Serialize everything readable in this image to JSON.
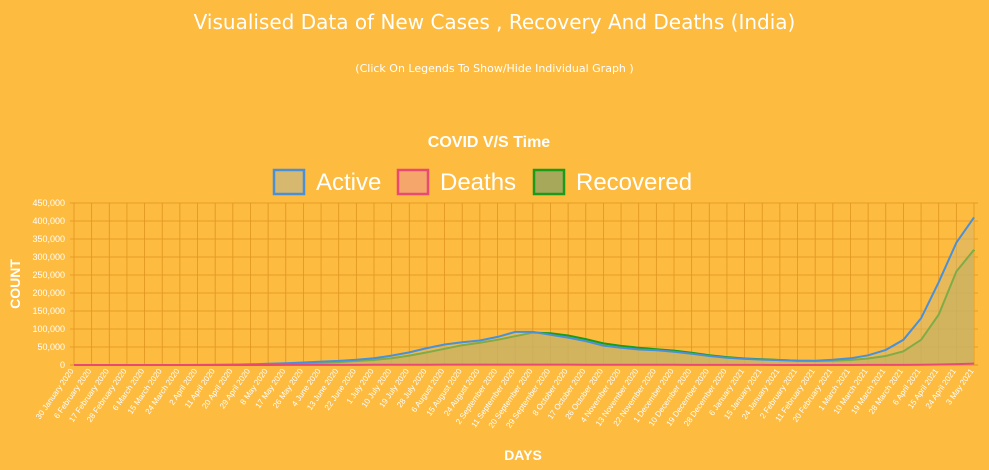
{
  "header": {
    "title": "Visualised Data of New Cases , Recovery And Deaths (India)",
    "subtitle": "(Click On Legends To Show/Hide Individual Graph )"
  },
  "chart_data": {
    "type": "area",
    "title": "COVID V/S Time",
    "xlabel": "DAYS",
    "ylabel": "COUNT",
    "ylim": [
      0,
      450000
    ],
    "y_ticks": [
      "0",
      "50,000",
      "100,000",
      "150,000",
      "200,000",
      "250,000",
      "300,000",
      "350,000",
      "400,000",
      "450,000"
    ],
    "grid": true,
    "legend_position": "top",
    "x_ticks": [
      "30 January 2020",
      "6 February 2020",
      "17 February 2020",
      "28 February 2020",
      "6 March 2020",
      "15 March 2020",
      "24 March 2020",
      "2 April 2020",
      "11 April 2020",
      "20 April 2020",
      "29 April 2020",
      "8 May 2020",
      "17 May 2020",
      "26 May 2020",
      "4 June 2020",
      "13 June 2020",
      "22 June 2020",
      "1 July 2020",
      "10 July 2020",
      "19 July 2020",
      "28 July 2020",
      "6 August 2020",
      "15 August 2020",
      "24 August 2020",
      "2 September 2020",
      "11 September 2020",
      "20 September 2020",
      "29 September 2020",
      "8 October 2020",
      "17 October 2020",
      "26 October 2020",
      "4 November 2020",
      "13 November 2020",
      "22 November 2020",
      "1 December 2020",
      "10 December 2020",
      "19 December 2020",
      "28 December 2020",
      "6 January 2021",
      "15 January 2021",
      "24 January 2021",
      "2 February 2021",
      "11 February 2021",
      "20 February 2021",
      "1 March 2021",
      "10 March 2021",
      "19 March 2021",
      "28 March 2021",
      "6 April 2021",
      "15 April 2021",
      "24 April 2021",
      "3 May 2021"
    ],
    "series": [
      {
        "name": "Active",
        "color": "#4a90d9",
        "fill": "#d6b86e",
        "values": [
          0,
          0,
          0,
          0,
          0,
          0,
          0,
          300,
          900,
          1200,
          1900,
          3300,
          5000,
          7000,
          9500,
          11500,
          14500,
          18500,
          26000,
          35000,
          47000,
          57000,
          63000,
          68000,
          78000,
          92000,
          92000,
          84000,
          76000,
          66000,
          54000,
          48000,
          43000,
          41000,
          37000,
          31000,
          25000,
          20000,
          17000,
          15000,
          13500,
          12000,
          12000,
          14500,
          18500,
          27000,
          42000,
          70000,
          130000,
          230000,
          340000,
          410000
        ]
      },
      {
        "name": "Deaths",
        "color": "#e94a73",
        "fill": "#f5a66a",
        "values": [
          0,
          0,
          0,
          0,
          0,
          0,
          0,
          10,
          40,
          50,
          70,
          120,
          150,
          200,
          300,
          350,
          400,
          550,
          600,
          700,
          900,
          1000,
          1000,
          1000,
          1100,
          1200,
          1200,
          1100,
          1000,
          800,
          600,
          500,
          500,
          500,
          450,
          400,
          300,
          250,
          200,
          150,
          130,
          100,
          90,
          100,
          120,
          150,
          250,
          400,
          700,
          1300,
          2500,
          3800
        ]
      },
      {
        "name": "Recovered",
        "color": "#1a9c1a",
        "fill": "#a8a85a",
        "values": [
          0,
          0,
          0,
          0,
          0,
          0,
          0,
          0,
          100,
          300,
          600,
          1500,
          3000,
          4500,
          6000,
          8000,
          11000,
          14000,
          19000,
          26000,
          35000,
          45000,
          55000,
          62000,
          70000,
          80000,
          90000,
          88000,
          82000,
          72000,
          60000,
          53000,
          48000,
          44000,
          40000,
          34000,
          27000,
          22000,
          18000,
          16000,
          14000,
          12000,
          11000,
          12000,
          14000,
          18000,
          25000,
          38000,
          70000,
          140000,
          260000,
          320000
        ]
      }
    ]
  }
}
